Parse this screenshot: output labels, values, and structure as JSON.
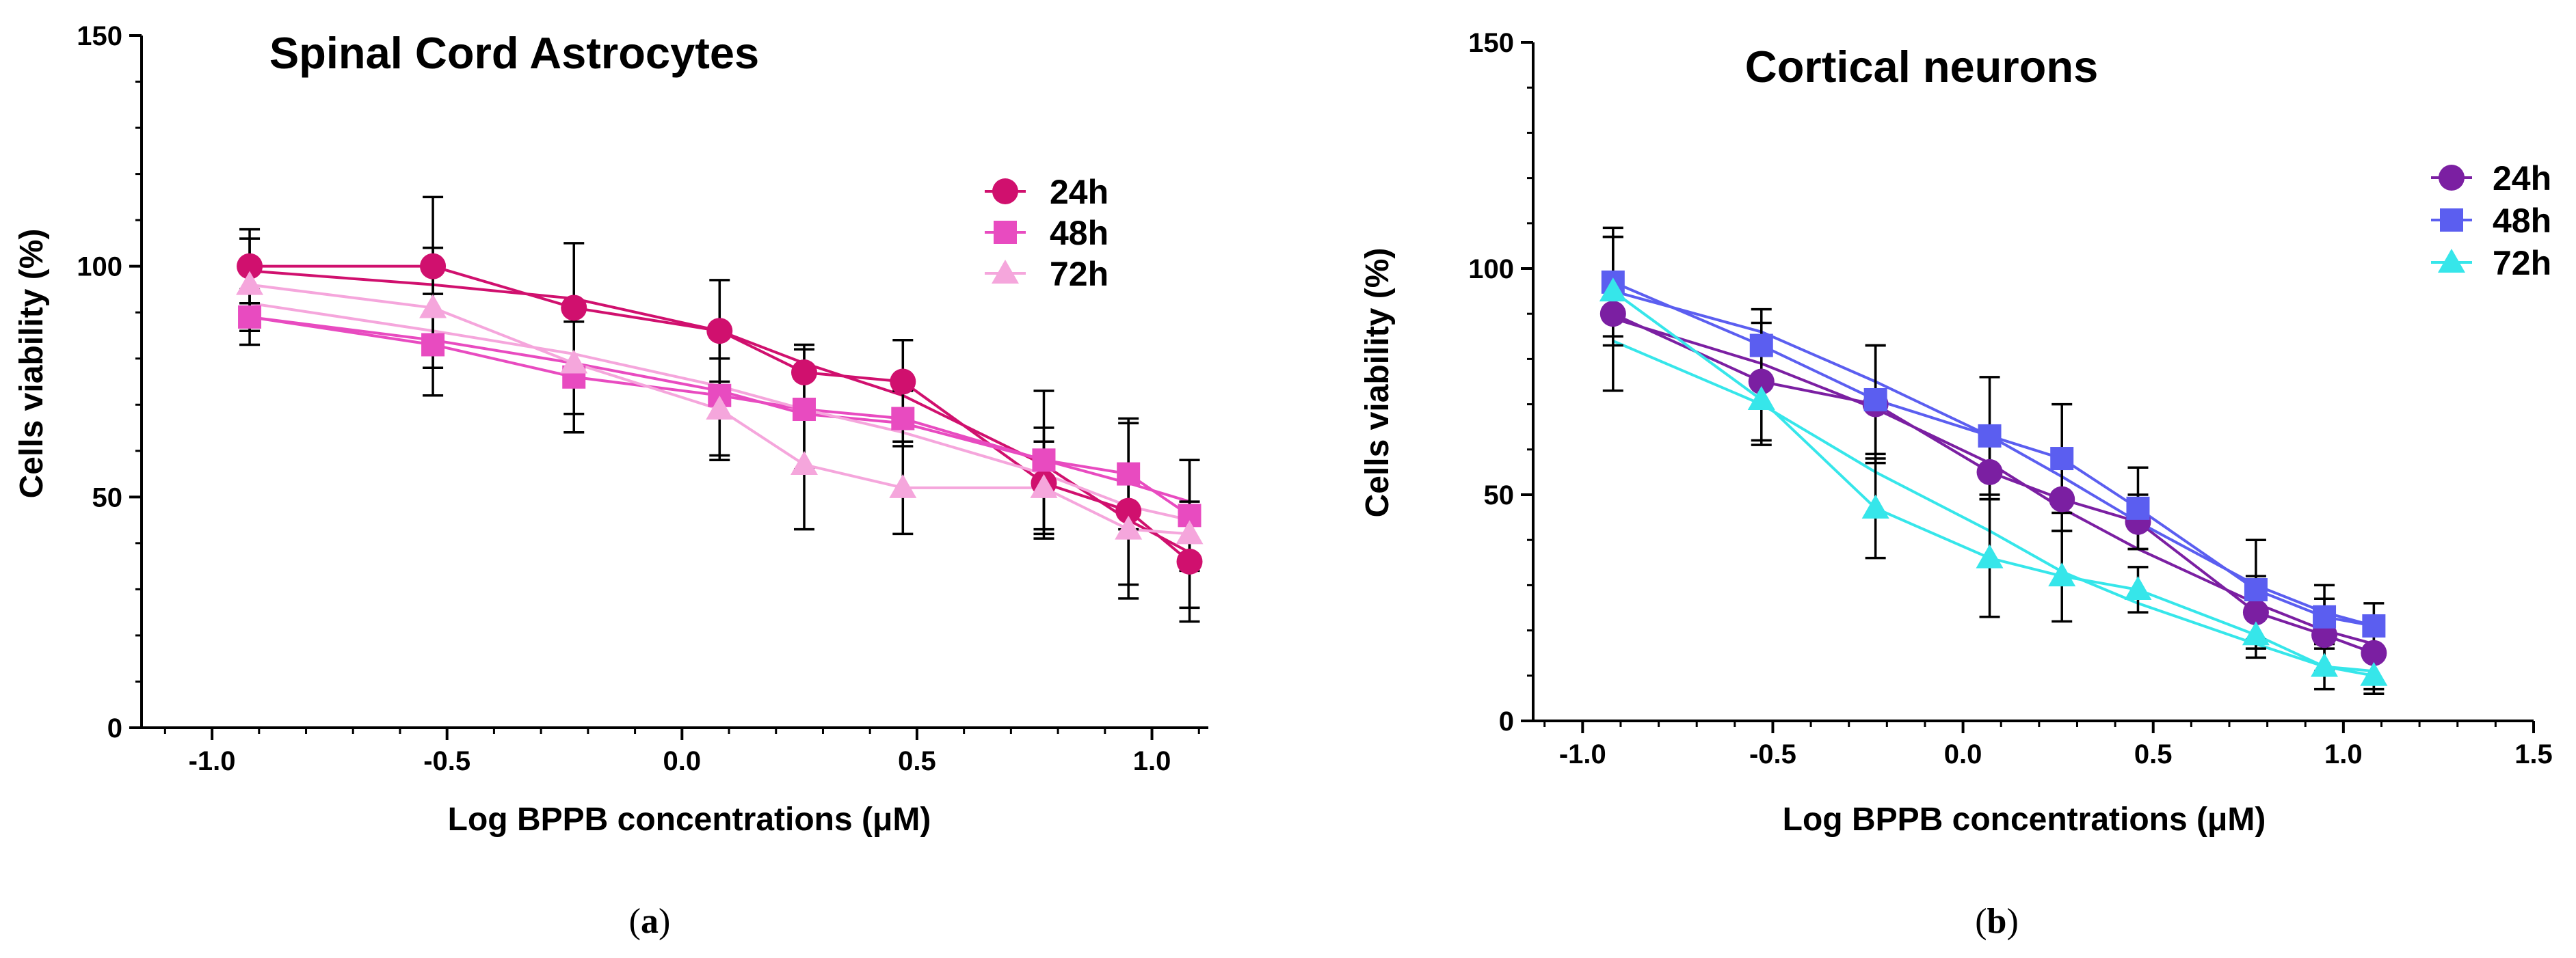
{
  "chart_data": [
    {
      "type": "line",
      "panel_label": "a",
      "title": "Spinal Cord Astrocytes",
      "xlabel": "Log BPPB concentrations (μM)",
      "ylabel": "Cells viability (%)",
      "xlim": [
        -1.15,
        1.12
      ],
      "ylim": [
        0,
        150
      ],
      "xticks": [
        -1.0,
        -0.5,
        0.0,
        0.5,
        1.0
      ],
      "xtick_labels": [
        "-1.0",
        "-0.5",
        "0.0",
        "0.5",
        "1.0"
      ],
      "yticks": [
        0,
        50,
        100,
        150
      ],
      "ytick_labels": [
        "0",
        "50",
        "100",
        "150"
      ],
      "grid": false,
      "legend_position": "top-right",
      "x": [
        -0.92,
        -0.53,
        -0.23,
        0.08,
        0.26,
        0.47,
        0.77,
        0.95,
        1.08
      ],
      "series": [
        {
          "name": "24h",
          "marker": "circle",
          "color": "#d0106e",
          "values": [
            100,
            100,
            91,
            86,
            77,
            75,
            53,
            47,
            36
          ],
          "errors": [
            8,
            15,
            14,
            11,
            6,
            9,
            12,
            19,
            13
          ],
          "fit": [
            99,
            96,
            93,
            86,
            79,
            72,
            57,
            45,
            38
          ]
        },
        {
          "name": "48h",
          "marker": "square",
          "color": "#e84bc0",
          "values": [
            89,
            83,
            76,
            72,
            69,
            67,
            58,
            55,
            46
          ],
          "errors": [
            6,
            11,
            12,
            13,
            13,
            6,
            15,
            12,
            12
          ],
          "fit": [
            89,
            84,
            79,
            73,
            68,
            66,
            58,
            53,
            49
          ]
        },
        {
          "name": "72h",
          "marker": "triangle",
          "color": "#f5a6dc",
          "values": [
            96,
            91,
            79,
            69,
            57,
            52,
            52,
            43,
            42
          ],
          "errors": [
            10,
            13,
            11,
            11,
            14,
            10,
            10,
            12,
            16
          ],
          "fit": [
            92,
            86,
            81,
            74,
            69,
            64,
            55,
            48,
            45
          ]
        }
      ]
    },
    {
      "type": "line",
      "panel_label": "b",
      "title": "Cortical neurons",
      "xlabel": "Log BPPB concentrations (μM)",
      "ylabel": "Cells viability (%)",
      "xlim": [
        -1.13,
        1.5
      ],
      "ylim": [
        0,
        150
      ],
      "xticks": [
        -1.0,
        -0.5,
        0.0,
        0.5,
        1.0,
        1.5
      ],
      "xtick_labels": [
        "-1.0",
        "-0.5",
        "0.0",
        "0.5",
        "1.0",
        "1.5"
      ],
      "yticks": [
        0,
        50,
        100,
        150
      ],
      "ytick_labels": [
        "0",
        "50",
        "100",
        "150"
      ],
      "grid": false,
      "legend_position": "top-right",
      "x": [
        -0.92,
        -0.53,
        -0.23,
        0.07,
        0.26,
        0.46,
        0.77,
        0.95,
        1.08
      ],
      "series": [
        {
          "name": "24h",
          "marker": "circle",
          "color": "#7b1fa2",
          "values": [
            90,
            75,
            70,
            55,
            49,
            44,
            24,
            19,
            15
          ],
          "errors": [
            17,
            13,
            13,
            6,
            7,
            6,
            8,
            8,
            8
          ],
          "fit": [
            89,
            79,
            69,
            57,
            47,
            38,
            26,
            20,
            17
          ]
        },
        {
          "name": "48h",
          "marker": "square",
          "color": "#5b5ef0",
          "values": [
            97,
            83,
            71,
            63,
            58,
            47,
            29,
            23,
            21
          ],
          "errors": [
            12,
            8,
            12,
            13,
            12,
            9,
            11,
            7,
            5
          ],
          "fit": [
            95,
            86,
            75,
            63,
            54,
            44,
            30,
            24,
            21
          ]
        },
        {
          "name": "72h",
          "marker": "triangle",
          "color": "#36e6ea",
          "values": [
            95,
            71,
            47,
            36,
            32,
            29,
            19,
            12,
            10
          ],
          "errors": [
            12,
            10,
            11,
            13,
            10,
            5,
            5,
            5,
            4
          ],
          "fit": [
            84,
            70,
            55,
            42,
            33,
            26,
            17,
            12,
            11
          ]
        }
      ]
    }
  ]
}
